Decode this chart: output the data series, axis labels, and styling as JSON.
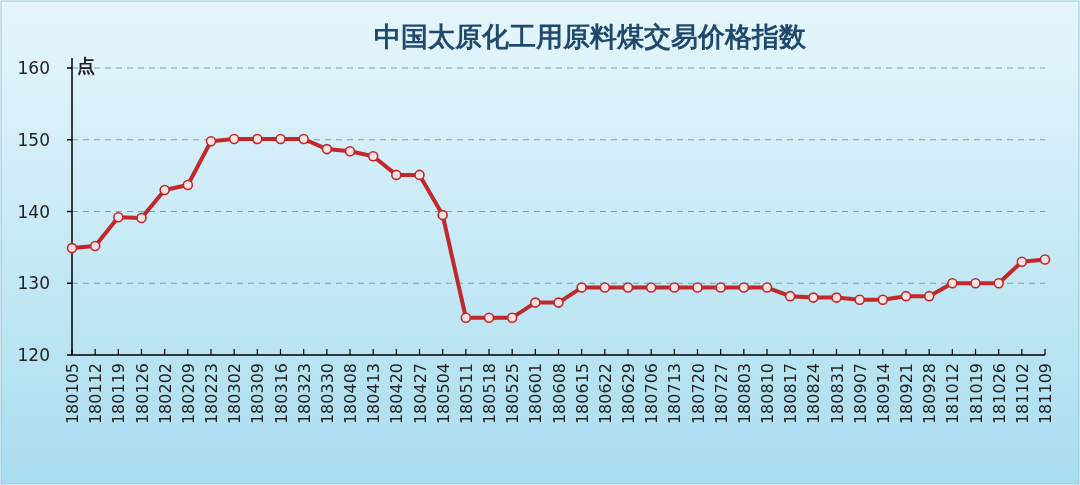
{
  "chart_data": {
    "type": "line",
    "title": "中国太原化工用原料煤交易价格指数",
    "ylabel": "点",
    "categories": [
      "180105",
      "180112",
      "180119",
      "180126",
      "180202",
      "180209",
      "180223",
      "180302",
      "180309",
      "180316",
      "180323",
      "180330",
      "180408",
      "180413",
      "180420",
      "180427",
      "180504",
      "180511",
      "180518",
      "180525",
      "180601",
      "180608",
      "180615",
      "180622",
      "180629",
      "180706",
      "180713",
      "180720",
      "180727",
      "180803",
      "180810",
      "180817",
      "180824",
      "180831",
      "180907",
      "180914",
      "180921",
      "180928",
      "181012",
      "181019",
      "181026",
      "181102",
      "181109"
    ],
    "series": [
      {
        "color": "#c0282a",
        "values": [
          134.9,
          135.2,
          139.2,
          139.1,
          143.0,
          143.7,
          149.8,
          150.1,
          150.1,
          150.1,
          150.1,
          148.7,
          148.4,
          147.7,
          145.1,
          145.1,
          139.5,
          125.2,
          125.2,
          125.2,
          127.3,
          127.3,
          129.4,
          129.4,
          129.4,
          129.4,
          129.4,
          129.4,
          129.4,
          129.4,
          129.4,
          128.2,
          128.0,
          128.0,
          127.7,
          127.7,
          128.2,
          128.2,
          130.0,
          130.0,
          130.0,
          133.0,
          133.3
        ]
      }
    ],
    "ylim": [
      120,
      160
    ],
    "yticks": [
      120,
      130,
      140,
      150,
      160
    ],
    "grid": "y",
    "marker": "circle",
    "line_style": "solid"
  }
}
